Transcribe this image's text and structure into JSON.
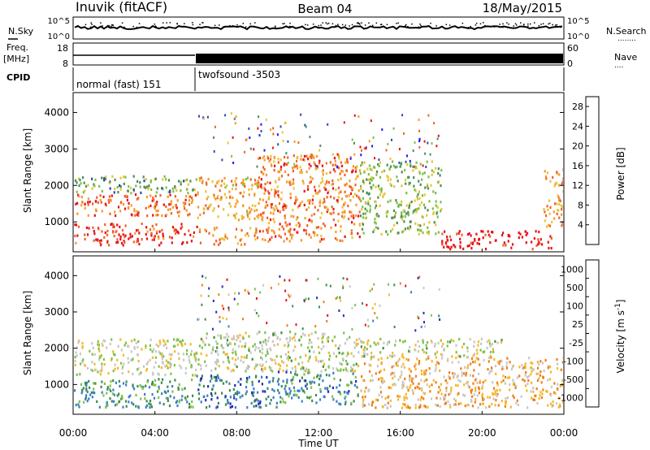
{
  "header": {
    "station": "Inuvik (fitACF)",
    "beam": "Beam 04",
    "date": "18/May/2015"
  },
  "strips": {
    "nsky_label": "N.Sky",
    "nsearch_label": "N.Search",
    "nsearch_dots": "........",
    "freq_label_1": "Freq.",
    "freq_label_2": "[MHz]",
    "nave_label": "Nave",
    "nave_dots": "....",
    "cpid_label": "CPID",
    "noise_ticks_left": [
      "10^5",
      "10^0"
    ],
    "noise_ticks_right": [
      "10^5",
      "10^0"
    ],
    "freq_ticks": [
      "18",
      "8"
    ],
    "nave_ticks": [
      "60",
      "0"
    ],
    "cpid_segments": [
      {
        "label": "normal (fast) 151",
        "start": "00:00",
        "end": "06:00"
      },
      {
        "label": "twofsound -3503",
        "start": "06:00",
        "end": "24:00"
      }
    ]
  },
  "chart_data": [
    {
      "type": "heatmap",
      "title": "",
      "xlabel": "Time UT",
      "ylabel": "Slant Range [km]",
      "x_ticks": [
        "00:00",
        "04:00",
        "08:00",
        "12:00",
        "16:00",
        "20:00",
        "00:00"
      ],
      "xlim_hours": [
        0,
        24
      ],
      "ylim": [
        180,
        4500
      ],
      "y_ticks": [
        "1000",
        "2000",
        "3000",
        "4000"
      ],
      "colorbar": {
        "label": "Power [dB]",
        "ticks": [
          "4",
          "8",
          "12",
          "16",
          "20",
          "24",
          "28"
        ],
        "range": [
          0,
          30
        ],
        "colors": [
          "#1b1bff",
          "#2a4fae",
          "#4c8f5c",
          "#7cc04a",
          "#e8c43a",
          "#f49a2d",
          "#f0632a",
          "#e8121a"
        ]
      },
      "bands": [
        {
          "t0": 0.0,
          "t1": 6.0,
          "r0": 300,
          "r1": 900,
          "level": 0.9
        },
        {
          "t0": 0.0,
          "t1": 6.0,
          "r0": 1100,
          "r1": 1700,
          "level": 0.8
        },
        {
          "t0": 0.0,
          "t1": 6.0,
          "r0": 1700,
          "r1": 2200,
          "level": 0.4
        },
        {
          "t0": 6.0,
          "t1": 9.0,
          "r0": 300,
          "r1": 800,
          "level": 0.7
        },
        {
          "t0": 6.0,
          "t1": 9.0,
          "r0": 1000,
          "r1": 2200,
          "level": 0.65
        },
        {
          "t0": 9.0,
          "t1": 14.0,
          "r0": 400,
          "r1": 2800,
          "level": 0.75
        },
        {
          "t0": 14.0,
          "t1": 18.0,
          "r0": 600,
          "r1": 2600,
          "level": 0.45
        },
        {
          "t0": 18.0,
          "t1": 23.5,
          "r0": 200,
          "r1": 700,
          "level": 0.95
        },
        {
          "t0": 23.0,
          "t1": 24.0,
          "r0": 800,
          "r1": 2400,
          "level": 0.7
        }
      ]
    },
    {
      "type": "heatmap",
      "title": "",
      "xlabel": "Time UT",
      "ylabel": "Slant Range [km]",
      "x_ticks": [
        "00:00",
        "04:00",
        "08:00",
        "12:00",
        "16:00",
        "20:00",
        "00:00"
      ],
      "xlim_hours": [
        0,
        24
      ],
      "ylim": [
        180,
        4500
      ],
      "y_ticks": [
        "1000",
        "2000",
        "3000",
        "4000"
      ],
      "colorbar": {
        "label": "Velocity [m s^-1]",
        "ticks": [
          "1000",
          "500",
          "100",
          "25",
          "-25",
          "-100",
          "-500",
          "-1000"
        ],
        "colors": [
          "#2430b8",
          "#3f7ec7",
          "#3e8e4a",
          "#7ec24a",
          "#c8c8c8",
          "#f6b82b",
          "#f07e1b",
          "#e8121a"
        ]
      },
      "bands": [
        {
          "t0": 0.0,
          "t1": 6.0,
          "r0": 300,
          "r1": 1100,
          "level": 0.3
        },
        {
          "t0": 0.0,
          "t1": 6.0,
          "r0": 1200,
          "r1": 2200,
          "level": 0.55
        },
        {
          "t0": 6.0,
          "t1": 10.0,
          "r0": 300,
          "r1": 1200,
          "level": 0.2
        },
        {
          "t0": 6.0,
          "t1": 14.0,
          "r0": 1300,
          "r1": 2400,
          "level": 0.52
        },
        {
          "t0": 10.0,
          "t1": 14.0,
          "r0": 400,
          "r1": 1300,
          "level": 0.25
        },
        {
          "t0": 14.0,
          "t1": 24.0,
          "r0": 300,
          "r1": 1700,
          "level": 0.7
        },
        {
          "t0": 14.0,
          "t1": 21.0,
          "r0": 1700,
          "r1": 2200,
          "level": 0.52
        }
      ]
    }
  ]
}
